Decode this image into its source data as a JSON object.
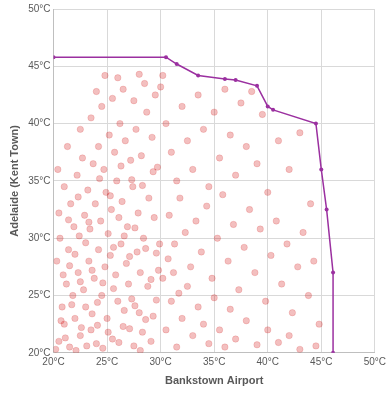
{
  "chart_data": {
    "type": "scatter",
    "x_label": "Bankstown Airport",
    "y_label": "Adelaide (Kent Town)",
    "xlim": [
      20,
      50
    ],
    "ylim": [
      20,
      50
    ],
    "xticks": [
      {
        "value": 20,
        "label": "20°C"
      },
      {
        "value": 25,
        "label": "25°C"
      },
      {
        "value": 30,
        "label": "30°C"
      },
      {
        "value": 35,
        "label": "35°C"
      },
      {
        "value": 40,
        "label": "40°C"
      },
      {
        "value": 45,
        "label": "45°C"
      },
      {
        "value": 50,
        "label": "50°C"
      }
    ],
    "yticks": [
      {
        "value": 20,
        "label": "20°C"
      },
      {
        "value": 25,
        "label": "25°C"
      },
      {
        "value": 30,
        "label": "30°C"
      },
      {
        "value": 35,
        "label": "35°C"
      },
      {
        "value": 40,
        "label": "40°C"
      },
      {
        "value": 45,
        "label": "45°C"
      },
      {
        "value": 50,
        "label": "50°C"
      }
    ],
    "grid": true,
    "series": [
      {
        "type": "scatter",
        "color": "#d00000",
        "marker": "circle",
        "x": [
          20.5,
          21,
          21.5,
          22,
          22.5,
          23,
          23.5,
          24,
          24.5,
          25,
          25.5,
          26,
          26.5,
          27,
          27.5,
          28,
          20.8,
          21.2,
          21.8,
          22.3,
          22.8,
          23.3,
          23.8,
          24.2,
          24.8,
          25.3,
          25.8,
          26.3,
          26.8,
          27.3,
          27.8,
          28.3,
          28.8,
          29.3,
          29.8,
          20.3,
          20.6,
          21.4,
          21.9,
          22.4,
          22.9,
          23.4,
          23.9,
          24.4,
          24.9,
          25.4,
          25.9,
          26.4,
          26.9,
          27.4,
          27.9,
          28.4,
          28.9,
          29.4,
          29.9,
          21,
          21.6,
          22.2,
          22.7,
          23.2,
          23.7,
          24.2,
          24.7,
          25.2,
          25.7,
          26.2,
          26.7,
          27.2,
          27.7,
          28.2,
          28.7,
          29.2,
          29.7,
          23.5,
          24.5,
          25.5,
          26.5,
          27.5,
          28.5,
          29.5,
          30.2,
          24.8,
          22.5,
          21.3,
          20.4,
          30.5,
          31,
          31.5,
          32,
          32.5,
          33,
          33.5,
          34,
          34.5,
          35,
          35.5,
          36,
          36.5,
          37,
          37.5,
          38,
          38.5,
          39,
          39.5,
          40,
          41,
          42,
          43,
          44,
          30.8,
          31.3,
          31.8,
          32.3,
          32.8,
          33.3,
          33.8,
          34.3,
          34.8,
          35.3,
          35.8,
          36.3,
          36.8,
          37.3,
          37.8,
          38.3,
          38.8,
          39.3,
          39.8,
          40.3,
          40.8,
          41.3,
          41.8,
          42.3,
          42.8,
          43.3,
          43.8,
          44.3,
          44.8,
          30.5,
          31,
          31.5,
          32,
          32.5,
          33,
          33.5,
          34,
          34.5,
          35,
          35.5,
          36,
          36.5,
          37,
          38,
          39,
          40,
          41,
          42,
          43,
          44.5,
          30.2,
          30.7,
          31.2,
          31.7,
          20.2,
          20.7,
          21.1,
          21.7,
          22.1,
          22.6,
          23.1,
          23.6,
          24.1,
          24.6,
          25.1,
          25.6,
          26.1,
          26.6,
          27.1,
          27.6,
          28.1,
          28.6,
          29.1,
          29.6,
          20.9,
          21.5,
          22,
          22.5,
          23,
          23.6,
          24.1,
          24.6,
          25.1,
          25.6,
          26.1,
          26.6,
          27.1,
          27.6,
          28.1,
          28.6,
          29.1,
          29.6,
          20.5,
          21.4,
          22.3,
          23.3,
          24.3,
          25.3,
          26.3,
          27.3,
          28.3,
          29.3,
          24,
          26,
          28,
          30
        ],
        "values": [
          21,
          22.5,
          20.5,
          23,
          21.5,
          24,
          22,
          20.8,
          25,
          23,
          21.2,
          24.5,
          22.3,
          26,
          20.6,
          23.5,
          24,
          26,
          25,
          27,
          25.5,
          28,
          26.5,
          29,
          27.5,
          28.5,
          26.8,
          29.5,
          27.8,
          24.7,
          28.8,
          21.8,
          25.8,
          23.2,
          27.2,
          28,
          30,
          29,
          31,
          30.2,
          32,
          30.8,
          33,
          31.5,
          34,
          32.5,
          35,
          33.2,
          31,
          34.5,
          32.2,
          30,
          33.5,
          31.8,
          29.5,
          34.5,
          33,
          35.5,
          37,
          34.2,
          36.5,
          38,
          36,
          39,
          37.5,
          40,
          38.5,
          36.8,
          39.5,
          37.2,
          41,
          38.8,
          36.2,
          40.5,
          41.5,
          42.2,
          43,
          42,
          43.5,
          42.5,
          44.2,
          44.2,
          39.5,
          38,
          36,
          40,
          37.5,
          35,
          41.5,
          38.5,
          36,
          42.5,
          39.5,
          34.5,
          41,
          37,
          43,
          39,
          35.5,
          41.8,
          38,
          42.8,
          36.5,
          40.8,
          34,
          38.5,
          36,
          39.2,
          33,
          32,
          29.5,
          33.5,
          30.5,
          27.5,
          31.5,
          28.8,
          32.8,
          26.5,
          30,
          33.8,
          28,
          31.2,
          25.5,
          29.2,
          32.5,
          27,
          30.8,
          24.5,
          28.5,
          31.5,
          26,
          29.5,
          23.5,
          27.5,
          30.5,
          25,
          28,
          22.5,
          22,
          24.5,
          20.5,
          23,
          25.8,
          21.5,
          24,
          22.5,
          20.8,
          24.8,
          22,
          20.5,
          23.8,
          21.2,
          22.8,
          20.7,
          22,
          20.9,
          21.5,
          20.3,
          20.6,
          26.5,
          28.2,
          27,
          25.2,
          20.3,
          22.8,
          21.3,
          24.2,
          20.2,
          22.2,
          20.6,
          23.4,
          22.4,
          20.4,
          21.8,
          25.6,
          20.9,
          23.7,
          22.1,
          24.1,
          20.2,
          22.9,
          21,
          24.6,
          26.8,
          27.6,
          28.6,
          26.2,
          29.6,
          27.2,
          24.4,
          26.1,
          30.4,
          29.2,
          31.8,
          30.2,
          28.4,
          30.9,
          27,
          29.1,
          26.4,
          28.7,
          32.2,
          31.6,
          33.6,
          31.4,
          35.2,
          33.7,
          36.3,
          35.1,
          34.6,
          35.8,
          42.8,
          44,
          44.3,
          43.2
        ]
      },
      {
        "type": "line",
        "color": "#9b30a0",
        "marker": "circle",
        "line_style": "solid",
        "x": [
          20,
          30.5,
          31.5,
          33.5,
          36,
          37,
          39,
          40,
          40.5,
          44.5,
          45,
          45.5,
          46.1,
          46.1
        ],
        "values": [
          45.8,
          45.8,
          45.2,
          44.2,
          43.9,
          43.8,
          43.3,
          41.5,
          41.2,
          40,
          36,
          32.5,
          27,
          20
        ]
      }
    ]
  }
}
